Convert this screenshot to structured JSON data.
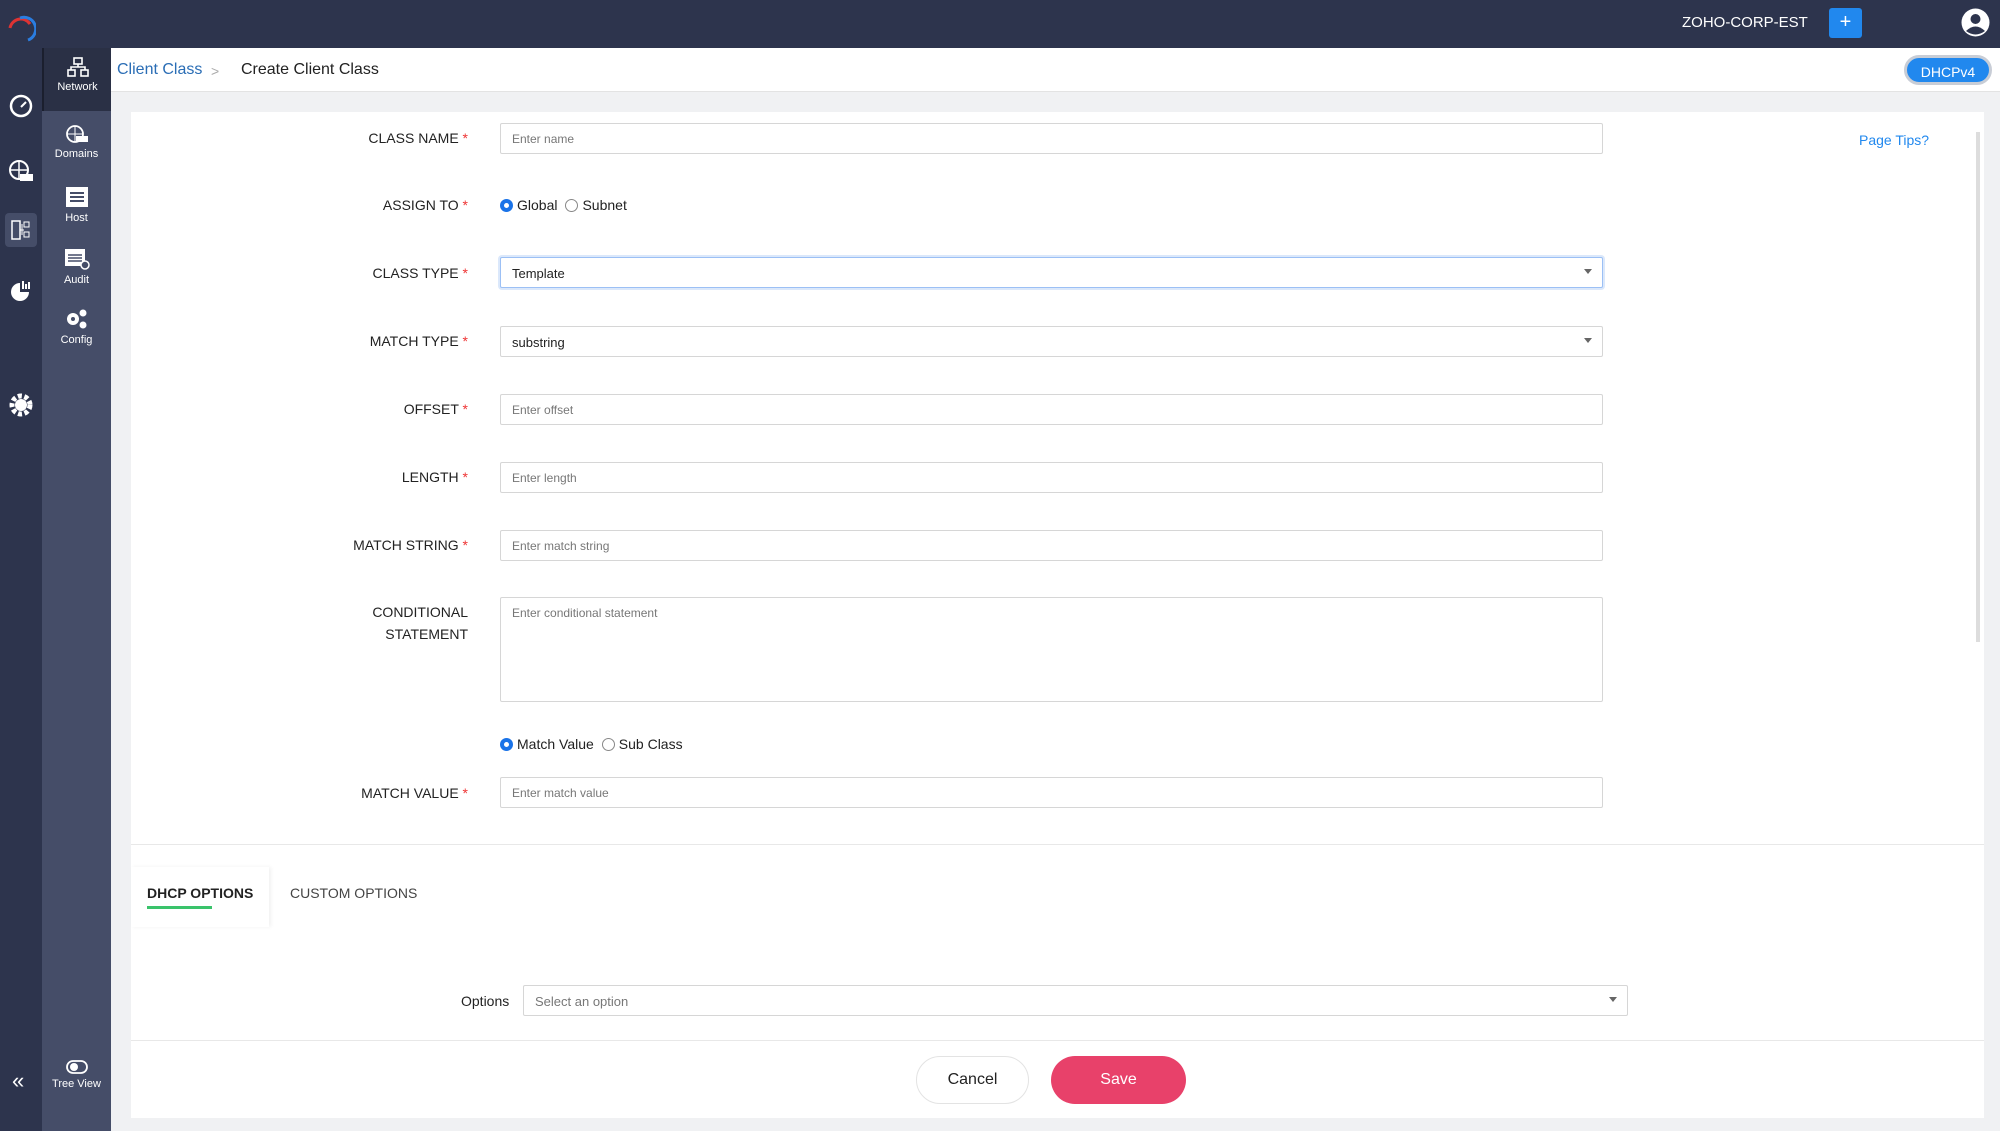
{
  "header": {
    "org": "ZOHO-CORP-EST",
    "add_label": "+",
    "brand_color": "#2d344d",
    "accent": "#2188ee"
  },
  "rail": {
    "icons": [
      "dashboard-icon",
      "dns-globe-icon",
      "dhcp-icon",
      "reports-icon",
      "settings-icon"
    ],
    "collapse_label": "«"
  },
  "sidebar": {
    "items": [
      {
        "label": "Network",
        "icon": "network-icon"
      },
      {
        "label": "Domains",
        "icon": "domains-icon"
      },
      {
        "label": "Host",
        "icon": "host-icon"
      },
      {
        "label": "Audit",
        "icon": "audit-icon"
      },
      {
        "label": "Config",
        "icon": "config-icon"
      }
    ],
    "tree_view": "Tree View"
  },
  "breadcrumb": {
    "parent": "Client Class",
    "separator": ">",
    "current": "Create Client Class",
    "protocol": "DHCPv4"
  },
  "page_tips": "Page Tips?",
  "form": {
    "class_name": {
      "label": "CLASS NAME",
      "placeholder": "Enter name"
    },
    "assign_to": {
      "label": "ASSIGN TO",
      "options": [
        "Global",
        "Subnet"
      ],
      "selected": "Global"
    },
    "class_type": {
      "label": "CLASS TYPE",
      "value": "Template"
    },
    "match_type": {
      "label": "MATCH TYPE",
      "value": "substring"
    },
    "offset": {
      "label": "OFFSET",
      "placeholder": "Enter offset"
    },
    "length": {
      "label": "LENGTH",
      "placeholder": "Enter length"
    },
    "match_string": {
      "label": "MATCH STRING",
      "placeholder": "Enter match string"
    },
    "conditional": {
      "label1": "CONDITIONAL",
      "label2": "STATEMENT",
      "placeholder": "Enter conditional statement"
    },
    "mode": {
      "options": [
        "Match Value",
        "Sub Class"
      ],
      "selected": "Match Value"
    },
    "match_value": {
      "label": "MATCH VALUE",
      "placeholder": "Enter match value"
    },
    "required_mark": "*"
  },
  "tabs": [
    {
      "label": "DHCP OPTIONS",
      "active": true
    },
    {
      "label": "CUSTOM OPTIONS",
      "active": false
    }
  ],
  "options": {
    "label": "Options",
    "placeholder": "Select an option"
  },
  "footer": {
    "cancel": "Cancel",
    "save": "Save",
    "save_color": "#e8416a"
  }
}
